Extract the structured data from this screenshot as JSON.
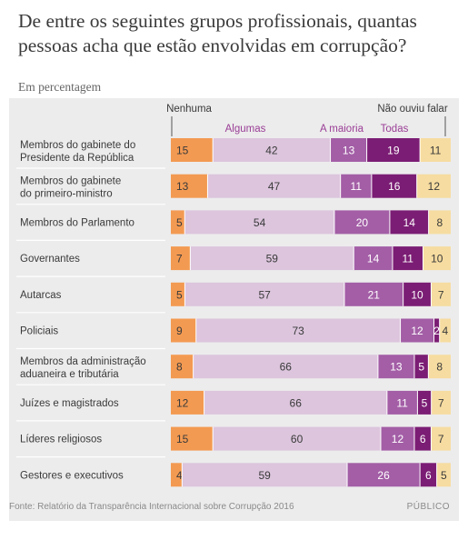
{
  "title": "De entre os seguintes grupos profissionais, quantas pessoas acha que estão envolvidas em corrupção?",
  "subtitle": "Em percentagem",
  "source": "Fonte: Relatório da Transparência Internacional sobre Corrupção 2016",
  "brand": "PÚBLICO",
  "colors": {
    "Nenhuma": "#f39a52",
    "Algumas": "#dcc5dd",
    "A maioria": "#a35ea6",
    "Todas": "#7b1d74",
    "Não ouviu falar": "#f6dca0",
    "legend_purple": "#9a3e96",
    "label_dark": "#3a3a3a",
    "separator": "#ffffff"
  },
  "chart_data": {
    "type": "bar",
    "stacked": true,
    "orientation": "horizontal",
    "unit": "%",
    "categories_lines": [
      [
        "Membros do gabinete do",
        "Presidente da República"
      ],
      [
        "Membros do gabinete",
        "do primeiro-ministro"
      ],
      [
        "Membros do Parlamento"
      ],
      [
        "Governantes"
      ],
      [
        "Autarcas"
      ],
      [
        "Policiais"
      ],
      [
        "Membros da administração",
        "aduaneira e tributária"
      ],
      [
        "Juízes e magistrados"
      ],
      [
        "Líderes religiosos"
      ],
      [
        "Gestores e executivos"
      ]
    ],
    "series": [
      {
        "name": "Nenhuma",
        "values": [
          15,
          13,
          5,
          7,
          5,
          9,
          8,
          12,
          15,
          4
        ]
      },
      {
        "name": "Algumas",
        "values": [
          42,
          47,
          54,
          59,
          57,
          73,
          66,
          66,
          60,
          59
        ]
      },
      {
        "name": "A maioria",
        "values": [
          13,
          11,
          20,
          14,
          21,
          12,
          13,
          11,
          12,
          26
        ]
      },
      {
        "name": "Todas",
        "values": [
          19,
          16,
          14,
          11,
          10,
          2,
          5,
          5,
          6,
          6
        ]
      },
      {
        "name": "Não ouviu falar",
        "values": [
          11,
          12,
          8,
          10,
          7,
          4,
          8,
          7,
          7,
          5
        ]
      }
    ],
    "legend_placement": "top",
    "grid": false
  }
}
